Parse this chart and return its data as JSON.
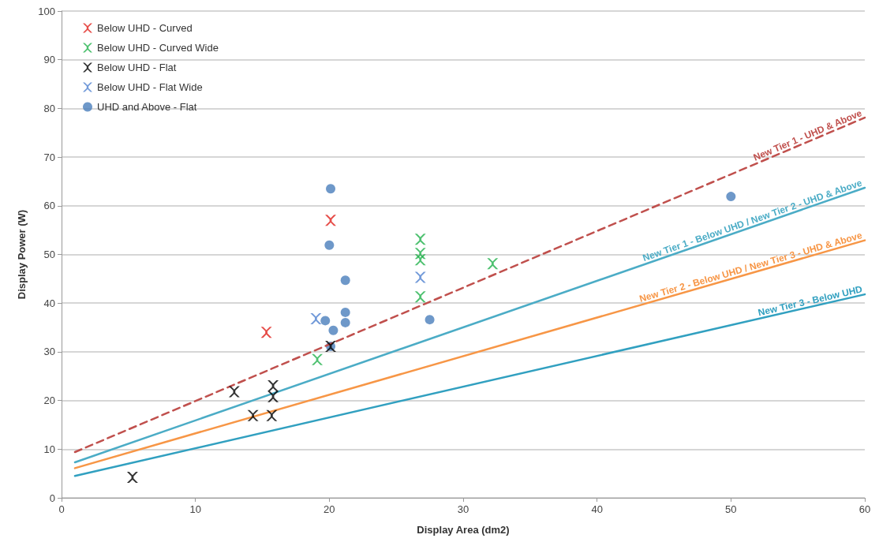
{
  "chart_data": {
    "type": "scatter",
    "xlabel": "Display Area (dm2)",
    "ylabel": "Display Power (W)",
    "xlim": [
      0,
      60
    ],
    "xticks": [
      0,
      10,
      20,
      30,
      40,
      50,
      60
    ],
    "ylim": [
      0,
      100
    ],
    "yticks": [
      0,
      10,
      20,
      30,
      40,
      50,
      60,
      70,
      80,
      90,
      100
    ],
    "grid": "y",
    "legend": "top left",
    "series": [
      {
        "name": "Below UHD - Curved",
        "marker": "cross",
        "color": "#e0201b",
        "x": [
          15.3,
          20.1
        ],
        "values": [
          34,
          57
        ]
      },
      {
        "name": "Below UHD - Curved Wide",
        "marker": "cross",
        "color": "#22b14c",
        "x": [
          19.1,
          26.8,
          26.8,
          26.8,
          26.8,
          32.2
        ],
        "values": [
          28.4,
          53.1,
          50.2,
          48.9,
          41.3,
          48.1
        ]
      },
      {
        "name": "Below UHD - Flat",
        "marker": "cross",
        "color": "#000000",
        "x": [
          5.3,
          12.9,
          14.3,
          15.7,
          15.8,
          15.8,
          20.1
        ],
        "values": [
          4.2,
          21.8,
          16.9,
          16.9,
          23,
          20.8,
          31.1
        ]
      },
      {
        "name": "Below UHD - Flat Wide",
        "marker": "cross",
        "color": "#4f81d0",
        "x": [
          19,
          26.8
        ],
        "values": [
          36.8,
          45.3
        ]
      },
      {
        "name": "UHD and Above - Flat",
        "marker": "circle",
        "color": "#4a7ebb",
        "x": [
          20.1,
          20,
          21.2,
          21.2,
          21.2,
          19.7,
          20.3,
          20.1,
          27.5,
          50
        ],
        "values": [
          63.5,
          51.9,
          44.7,
          38.1,
          36,
          36.4,
          34.4,
          31.1,
          36.6,
          61.9
        ]
      },
      {
        "name": "New Tier 1 - UHD & Above",
        "type": "line",
        "line_style": "dashed",
        "marker": "none",
        "color": "#c0504d",
        "x": [
          1,
          60
        ],
        "values": [
          9.4,
          78.1
        ]
      },
      {
        "name": "New Tier 1 - Below UHD / New Tier 2 - UHD & Above",
        "type": "line",
        "line_style": "solid",
        "marker": "none",
        "color": "#4bacc6",
        "x": [
          1,
          60
        ],
        "values": [
          7.3,
          63.7
        ]
      },
      {
        "name": "New Tier 2 - Below UHD / New Tier 3 - UHD & Above",
        "type": "line",
        "line_style": "solid",
        "marker": "none",
        "color": "#f79646",
        "x": [
          1,
          60
        ],
        "values": [
          6.1,
          52.9
        ]
      },
      {
        "name": "New Tier 3 - Below UHD",
        "type": "line",
        "line_style": "solid",
        "marker": "none",
        "color": "#31a0c0",
        "x": [
          1,
          60
        ],
        "values": [
          4.5,
          41.8
        ]
      }
    ]
  }
}
